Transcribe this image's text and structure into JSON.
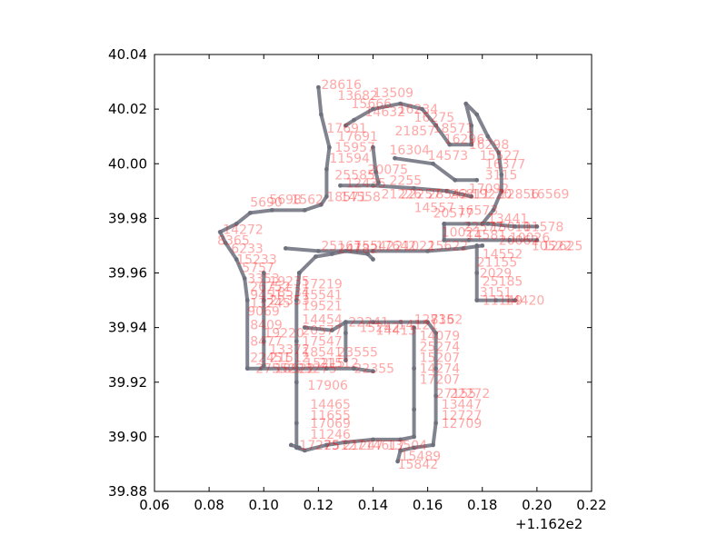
{
  "chart_data": {
    "type": "scatter",
    "title": "",
    "xlabel": "",
    "ylabel": "",
    "x_offset_label": "+1.162e2",
    "xlim": [
      0.06,
      0.22
    ],
    "ylim": [
      39.88,
      40.04
    ],
    "x_ticks": [
      "0.06",
      "0.08",
      "0.10",
      "0.12",
      "0.14",
      "0.16",
      "0.18",
      "0.20",
      "0.22"
    ],
    "y_ticks": [
      "39.88",
      "39.90",
      "39.92",
      "39.94",
      "39.96",
      "39.98",
      "40.00",
      "40.02",
      "40.04"
    ],
    "grid": false,
    "colors": {
      "track": "#6b6f7b",
      "label": "#ff0000",
      "marker_alt": "#5a3c9c"
    },
    "track": [
      [
        [
          0.12,
          40.028
        ],
        [
          0.121,
          40.018
        ],
        [
          0.124,
          40.006
        ],
        [
          0.123,
          39.998
        ],
        [
          0.123,
          39.988
        ],
        [
          0.121,
          39.985
        ],
        [
          0.115,
          39.983
        ],
        [
          0.103,
          39.983
        ],
        [
          0.095,
          39.982
        ],
        [
          0.09,
          39.978
        ],
        [
          0.084,
          39.975
        ],
        [
          0.086,
          39.971
        ],
        [
          0.09,
          39.965
        ],
        [
          0.093,
          39.958
        ],
        [
          0.094,
          39.95
        ],
        [
          0.094,
          39.925
        ],
        [
          0.099,
          39.925
        ],
        [
          0.112,
          39.925
        ],
        [
          0.123,
          39.925
        ],
        [
          0.133,
          39.925
        ]
      ],
      [
        [
          0.133,
          39.925
        ],
        [
          0.14,
          39.924
        ]
      ],
      [
        [
          0.13,
          40.014
        ],
        [
          0.133,
          40.016
        ],
        [
          0.14,
          40.02
        ],
        [
          0.15,
          40.022
        ],
        [
          0.158,
          40.02
        ],
        [
          0.163,
          40.014
        ],
        [
          0.168,
          40.007
        ],
        [
          0.176,
          40.007
        ],
        [
          0.176,
          40.014
        ],
        [
          0.174,
          40.022
        ],
        [
          0.178,
          40.018
        ],
        [
          0.182,
          40.01
        ],
        [
          0.186,
          40.004
        ],
        [
          0.187,
          39.996
        ],
        [
          0.187,
          39.99
        ],
        [
          0.184,
          39.983
        ],
        [
          0.18,
          39.978
        ]
      ],
      [
        [
          0.148,
          40.002
        ],
        [
          0.162,
          40.0
        ],
        [
          0.17,
          39.994
        ],
        [
          0.178,
          39.994
        ]
      ],
      [
        [
          0.128,
          39.992
        ],
        [
          0.14,
          39.992
        ],
        [
          0.155,
          39.991
        ],
        [
          0.167,
          39.99
        ],
        [
          0.176,
          39.988
        ]
      ],
      [
        [
          0.14,
          40.006
        ],
        [
          0.141,
          39.997
        ],
        [
          0.142,
          39.993
        ]
      ],
      [
        [
          0.166,
          39.978
        ],
        [
          0.175,
          39.978
        ],
        [
          0.182,
          39.978
        ],
        [
          0.192,
          39.977
        ],
        [
          0.2,
          39.977
        ]
      ],
      [
        [
          0.166,
          39.978
        ],
        [
          0.166,
          39.972
        ],
        [
          0.175,
          39.972
        ],
        [
          0.19,
          39.972
        ],
        [
          0.2,
          39.972
        ]
      ],
      [
        [
          0.108,
          39.969
        ],
        [
          0.12,
          39.968
        ],
        [
          0.14,
          39.968
        ],
        [
          0.16,
          39.968
        ],
        [
          0.173,
          39.969
        ],
        [
          0.18,
          39.97
        ]
      ],
      [
        [
          0.113,
          39.96
        ],
        [
          0.119,
          39.966
        ],
        [
          0.125,
          39.967
        ],
        [
          0.13,
          39.968
        ],
        [
          0.138,
          39.967
        ],
        [
          0.14,
          39.965
        ]
      ],
      [
        [
          0.178,
          39.97
        ],
        [
          0.178,
          39.96
        ],
        [
          0.178,
          39.95
        ],
        [
          0.185,
          39.95
        ],
        [
          0.192,
          39.95
        ]
      ],
      [
        [
          0.113,
          39.96
        ],
        [
          0.112,
          39.95
        ],
        [
          0.112,
          39.935
        ],
        [
          0.112,
          39.92
        ],
        [
          0.112,
          39.905
        ],
        [
          0.112,
          39.896
        ],
        [
          0.115,
          39.895
        ],
        [
          0.123,
          39.897
        ],
        [
          0.13,
          39.898
        ],
        [
          0.14,
          39.899
        ],
        [
          0.15,
          39.899
        ],
        [
          0.155,
          39.9
        ],
        [
          0.155,
          39.91
        ],
        [
          0.155,
          39.925
        ],
        [
          0.155,
          39.94
        ]
      ],
      [
        [
          0.115,
          39.94
        ],
        [
          0.125,
          39.939
        ],
        [
          0.13,
          39.942
        ],
        [
          0.14,
          39.942
        ],
        [
          0.15,
          39.942
        ],
        [
          0.16,
          39.942
        ],
        [
          0.163,
          39.938
        ],
        [
          0.163,
          39.925
        ],
        [
          0.163,
          39.915
        ],
        [
          0.163,
          39.905
        ],
        [
          0.162,
          39.897
        ],
        [
          0.155,
          39.896
        ],
        [
          0.15,
          39.895
        ],
        [
          0.149,
          39.891
        ]
      ],
      [
        [
          0.13,
          39.928
        ],
        [
          0.13,
          39.938
        ],
        [
          0.13,
          39.942
        ]
      ],
      [
        [
          0.1,
          39.96
        ],
        [
          0.1,
          39.95
        ],
        [
          0.1,
          39.935
        ],
        [
          0.1,
          39.926
        ]
      ],
      [
        [
          0.11,
          39.897
        ],
        [
          0.113,
          39.896
        ]
      ]
    ],
    "labels": [
      {
        "text": "28616",
        "x": 0.121,
        "y": 40.029
      },
      {
        "text": "13682",
        "x": 0.127,
        "y": 40.025
      },
      {
        "text": "13509",
        "x": 0.14,
        "y": 40.026
      },
      {
        "text": "15666",
        "x": 0.132,
        "y": 40.022
      },
      {
        "text": "16234",
        "x": 0.149,
        "y": 40.02
      },
      {
        "text": "16275",
        "x": 0.155,
        "y": 40.017
      },
      {
        "text": "14632",
        "x": 0.137,
        "y": 40.019
      },
      {
        "text": "17691",
        "x": 0.123,
        "y": 40.013
      },
      {
        "text": "17691",
        "x": 0.127,
        "y": 40.01
      },
      {
        "text": "21857",
        "x": 0.148,
        "y": 40.012
      },
      {
        "text": "18571",
        "x": 0.162,
        "y": 40.013
      },
      {
        "text": "16296",
        "x": 0.166,
        "y": 40.009
      },
      {
        "text": "16298",
        "x": 0.175,
        "y": 40.007
      },
      {
        "text": "15957",
        "x": 0.126,
        "y": 40.006
      },
      {
        "text": "15527",
        "x": 0.179,
        "y": 40.003
      },
      {
        "text": "16377",
        "x": 0.181,
        "y": 40.0
      },
      {
        "text": "11594",
        "x": 0.124,
        "y": 40.002
      },
      {
        "text": "16304",
        "x": 0.146,
        "y": 40.005
      },
      {
        "text": "14573",
        "x": 0.16,
        "y": 40.003
      },
      {
        "text": "20075",
        "x": 0.138,
        "y": 39.998
      },
      {
        "text": "3115",
        "x": 0.181,
        "y": 39.996
      },
      {
        "text": "2255",
        "x": 0.146,
        "y": 39.994
      },
      {
        "text": "25585",
        "x": 0.126,
        "y": 39.996
      },
      {
        "text": "12435",
        "x": 0.13,
        "y": 39.993
      },
      {
        "text": "17092",
        "x": 0.175,
        "y": 39.991
      },
      {
        "text": "16569",
        "x": 0.197,
        "y": 39.989
      },
      {
        "text": "18571",
        "x": 0.123,
        "y": 39.988
      },
      {
        "text": "14558",
        "x": 0.128,
        "y": 39.988
      },
      {
        "text": "21226",
        "x": 0.143,
        "y": 39.989
      },
      {
        "text": "22257",
        "x": 0.15,
        "y": 39.989
      },
      {
        "text": "28542",
        "x": 0.16,
        "y": 39.989
      },
      {
        "text": "26811",
        "x": 0.168,
        "y": 39.989
      },
      {
        "text": "19220",
        "x": 0.176,
        "y": 39.989
      },
      {
        "text": "12856",
        "x": 0.186,
        "y": 39.989
      },
      {
        "text": "5690",
        "x": 0.095,
        "y": 39.986
      },
      {
        "text": "5698",
        "x": 0.102,
        "y": 39.987
      },
      {
        "text": "1562",
        "x": 0.11,
        "y": 39.987
      },
      {
        "text": "14557",
        "x": 0.155,
        "y": 39.984
      },
      {
        "text": "20577",
        "x": 0.162,
        "y": 39.982
      },
      {
        "text": "16573",
        "x": 0.171,
        "y": 39.983
      },
      {
        "text": "13441",
        "x": 0.182,
        "y": 39.98
      },
      {
        "text": "22577",
        "x": 0.173,
        "y": 39.977
      },
      {
        "text": "15010",
        "x": 0.183,
        "y": 39.977
      },
      {
        "text": "11578",
        "x": 0.195,
        "y": 39.977
      },
      {
        "text": "10021",
        "x": 0.165,
        "y": 39.975
      },
      {
        "text": "14581",
        "x": 0.174,
        "y": 39.974
      },
      {
        "text": "10026",
        "x": 0.19,
        "y": 39.973
      },
      {
        "text": "14272",
        "x": 0.085,
        "y": 39.976
      },
      {
        "text": "8365",
        "x": 0.083,
        "y": 39.972
      },
      {
        "text": "6233",
        "x": 0.088,
        "y": 39.969
      },
      {
        "text": "15233",
        "x": 0.09,
        "y": 39.965
      },
      {
        "text": "5757",
        "x": 0.092,
        "y": 39.962
      },
      {
        "text": "25167",
        "x": 0.121,
        "y": 39.97
      },
      {
        "text": "24782",
        "x": 0.127,
        "y": 39.969
      },
      {
        "text": "15542",
        "x": 0.133,
        "y": 39.97
      },
      {
        "text": "17642",
        "x": 0.141,
        "y": 39.97
      },
      {
        "text": "21022",
        "x": 0.148,
        "y": 39.97
      },
      {
        "text": "15622",
        "x": 0.16,
        "y": 39.97
      },
      {
        "text": "20062",
        "x": 0.186,
        "y": 39.972
      },
      {
        "text": "10522",
        "x": 0.198,
        "y": 39.97
      },
      {
        "text": "12625",
        "x": 0.202,
        "y": 39.97
      },
      {
        "text": "14552",
        "x": 0.18,
        "y": 39.967
      },
      {
        "text": "21155",
        "x": 0.178,
        "y": 39.964
      },
      {
        "text": "2029",
        "x": 0.179,
        "y": 39.96
      },
      {
        "text": "25185",
        "x": 0.18,
        "y": 39.957
      },
      {
        "text": "3151",
        "x": 0.179,
        "y": 39.953
      },
      {
        "text": "11149",
        "x": 0.18,
        "y": 39.95
      },
      {
        "text": "14420",
        "x": 0.188,
        "y": 39.95
      },
      {
        "text": "3353",
        "x": 0.094,
        "y": 39.958
      },
      {
        "text": "26752",
        "x": 0.095,
        "y": 39.955
      },
      {
        "text": "9451",
        "x": 0.095,
        "y": 39.952
      },
      {
        "text": "13245",
        "x": 0.095,
        "y": 39.949
      },
      {
        "text": "19235",
        "x": 0.102,
        "y": 39.957
      },
      {
        "text": "18534",
        "x": 0.102,
        "y": 39.953
      },
      {
        "text": "22353",
        "x": 0.102,
        "y": 39.95
      },
      {
        "text": "9069",
        "x": 0.094,
        "y": 39.946
      },
      {
        "text": "8409",
        "x": 0.095,
        "y": 39.941
      },
      {
        "text": "19220",
        "x": 0.1,
        "y": 39.938
      },
      {
        "text": "8477",
        "x": 0.095,
        "y": 39.935
      },
      {
        "text": "13372",
        "x": 0.102,
        "y": 39.932
      },
      {
        "text": "22451",
        "x": 0.095,
        "y": 39.929
      },
      {
        "text": "21512",
        "x": 0.102,
        "y": 39.929
      },
      {
        "text": "17219",
        "x": 0.114,
        "y": 39.956
      },
      {
        "text": "15541",
        "x": 0.114,
        "y": 39.952
      },
      {
        "text": "19521",
        "x": 0.114,
        "y": 39.948
      },
      {
        "text": "14454",
        "x": 0.114,
        "y": 39.943
      },
      {
        "text": "20577",
        "x": 0.114,
        "y": 39.939
      },
      {
        "text": "17547",
        "x": 0.114,
        "y": 39.935
      },
      {
        "text": "18541",
        "x": 0.114,
        "y": 39.931
      },
      {
        "text": "15215",
        "x": 0.115,
        "y": 39.927
      },
      {
        "text": "22241",
        "x": 0.131,
        "y": 39.942
      },
      {
        "text": "15242",
        "x": 0.135,
        "y": 39.94
      },
      {
        "text": "14413",
        "x": 0.141,
        "y": 39.939
      },
      {
        "text": "14121",
        "x": 0.149,
        "y": 39.941
      },
      {
        "text": "12735",
        "x": 0.155,
        "y": 39.943
      },
      {
        "text": "8162",
        "x": 0.161,
        "y": 39.943
      },
      {
        "text": "23555",
        "x": 0.127,
        "y": 39.931
      },
      {
        "text": "22355",
        "x": 0.133,
        "y": 39.925
      },
      {
        "text": "27552",
        "x": 0.097,
        "y": 39.925
      },
      {
        "text": "18922",
        "x": 0.104,
        "y": 39.925
      },
      {
        "text": "23275",
        "x": 0.112,
        "y": 39.925
      },
      {
        "text": "17906",
        "x": 0.116,
        "y": 39.919
      },
      {
        "text": "21512",
        "x": 0.12,
        "y": 39.927
      },
      {
        "text": "14465",
        "x": 0.117,
        "y": 39.912
      },
      {
        "text": "11655",
        "x": 0.117,
        "y": 39.908
      },
      {
        "text": "17069",
        "x": 0.117,
        "y": 39.905
      },
      {
        "text": "11246",
        "x": 0.117,
        "y": 39.901
      },
      {
        "text": "17275",
        "x": 0.113,
        "y": 39.897
      },
      {
        "text": "25127",
        "x": 0.122,
        "y": 39.897
      },
      {
        "text": "21247",
        "x": 0.129,
        "y": 39.897
      },
      {
        "text": "14617",
        "x": 0.137,
        "y": 39.897
      },
      {
        "text": "13504",
        "x": 0.145,
        "y": 39.897
      },
      {
        "text": "15489",
        "x": 0.15,
        "y": 39.893
      },
      {
        "text": "15842",
        "x": 0.149,
        "y": 39.89
      },
      {
        "text": "14079",
        "x": 0.157,
        "y": 39.937
      },
      {
        "text": "25274",
        "x": 0.157,
        "y": 39.933
      },
      {
        "text": "15207",
        "x": 0.157,
        "y": 39.929
      },
      {
        "text": "14274",
        "x": 0.157,
        "y": 39.925
      },
      {
        "text": "17207",
        "x": 0.157,
        "y": 39.921
      },
      {
        "text": "27155",
        "x": 0.163,
        "y": 39.916
      },
      {
        "text": "22272",
        "x": 0.168,
        "y": 39.916
      },
      {
        "text": "13447",
        "x": 0.165,
        "y": 39.912
      },
      {
        "text": "12727",
        "x": 0.165,
        "y": 39.908
      },
      {
        "text": "12709",
        "x": 0.165,
        "y": 39.905
      }
    ]
  }
}
